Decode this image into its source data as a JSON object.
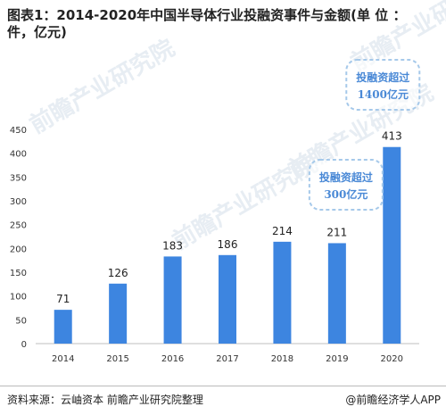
{
  "title": "图表1：2014-2020年中国半导体行业投融资事件与金额(单 位 ：件，亿元)",
  "footer": {
    "source": "资料来源：云岫资本 前瞻产业研究院整理",
    "brand": "@前瞻经济学人APP"
  },
  "watermark": "前瞻产业研究院",
  "colors": {
    "bar": "#3d85e0",
    "annotation_border": "#a6c9ea",
    "annotation_text": "#4a89d6"
  },
  "annotations": [
    {
      "text_line1": "投融资超过",
      "text_line2": "300亿元",
      "year": "2019"
    },
    {
      "text_line1": "投融资超过",
      "text_line2": "1400亿元",
      "year": "2020"
    }
  ],
  "chart_data": {
    "type": "bar",
    "title": "图表1：2014-2020年中国半导体行业投融资事件与金额(单 位 ：件，亿元)",
    "categories": [
      "2014",
      "2015",
      "2016",
      "2017",
      "2018",
      "2019",
      "2020"
    ],
    "values": [
      71,
      126,
      183,
      186,
      214,
      211,
      413
    ],
    "ylim": [
      0,
      450
    ],
    "yticks": [
      0,
      50,
      100,
      150,
      200,
      250,
      300,
      350,
      400,
      450
    ],
    "grid": false,
    "legend": "none"
  }
}
